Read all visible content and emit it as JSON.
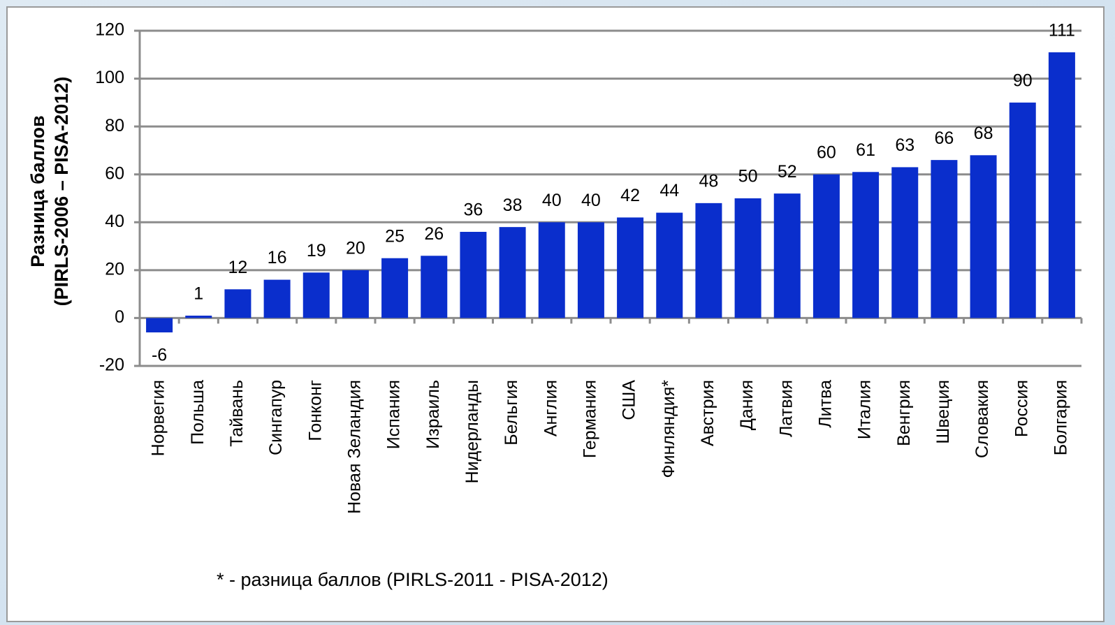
{
  "chart_data": {
    "type": "bar",
    "y_label": [
      "Разница баллов",
      "(PIRLS-2006 – PISA-2012)"
    ],
    "categories": [
      "Норвегия",
      "Польша",
      "Тайвань",
      "Сингапур",
      "Гонконг",
      "Новая Зеландия",
      "Испания",
      "Израиль",
      "Нидерланды",
      "Бельгия",
      "Англия",
      "Германия",
      "США",
      "Финляндия*",
      "Австрия",
      "Дания",
      "Латвия",
      "Литва",
      "Италия",
      "Венгрия",
      "Швеция",
      "Словакия",
      "Россия",
      "Болгария"
    ],
    "values": [
      -6,
      1,
      12,
      16,
      19,
      20,
      25,
      26,
      36,
      38,
      40,
      40,
      42,
      44,
      48,
      50,
      52,
      60,
      61,
      63,
      66,
      68,
      90,
      111
    ],
    "color": "#0a2ecc",
    "ylim": [
      -20,
      120
    ],
    "yticks": [
      -20,
      0,
      20,
      40,
      60,
      80,
      100,
      120
    ],
    "grid": true,
    "footnote": "* - разница баллов (PIRLS-2011 - PISA-2012)"
  }
}
